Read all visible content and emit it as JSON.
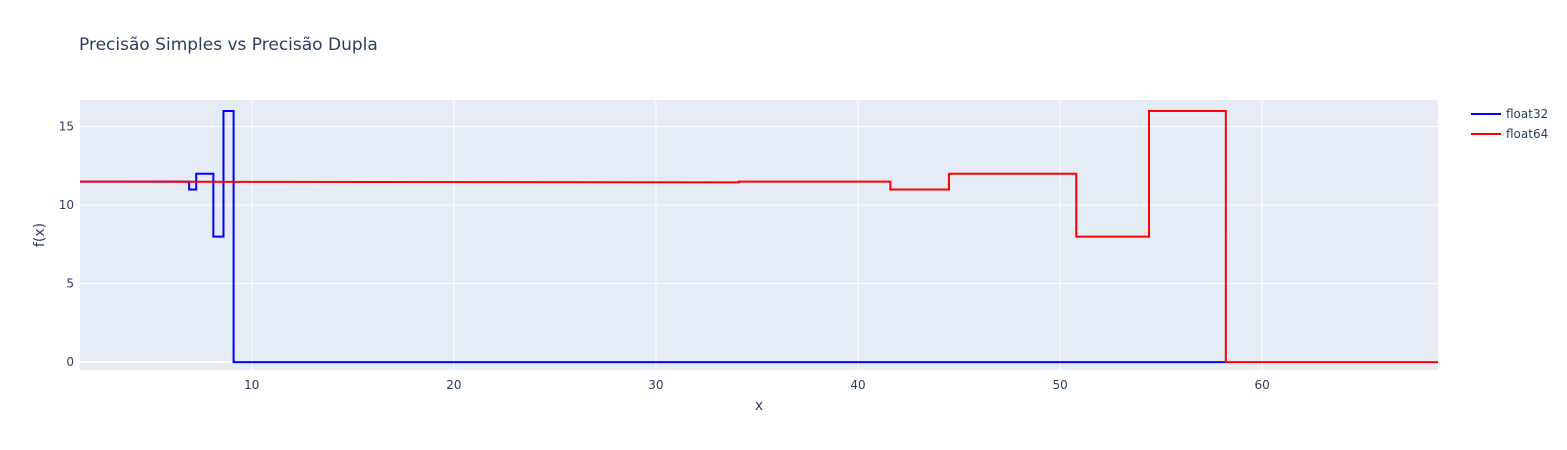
{
  "chart_data": {
    "type": "line",
    "title": "Precisão Simples vs Precisão Dupla",
    "xlabel": "x",
    "ylabel": "f(x)",
    "xlim": [
      1.5,
      68.7
    ],
    "ylim": [
      -0.5,
      16.7
    ],
    "xticks": [
      10,
      20,
      30,
      40,
      50,
      60
    ],
    "yticks": [
      0,
      5,
      10,
      15
    ],
    "grid": true,
    "legend_position": "top-right",
    "plot_background": "#e5ecf6",
    "series": [
      {
        "name": "float32",
        "color": "#0000ff",
        "shape": "step",
        "x": [
          1.5,
          5.95,
          5.95,
          6.9,
          6.9,
          7.25,
          7.25,
          8.1,
          8.1,
          8.6,
          8.6,
          9.1,
          9.1,
          58.2
        ],
        "y": [
          11.5,
          11.5,
          11.5,
          11.5,
          11.0,
          11.0,
          12.0,
          12.0,
          8.0,
          8.0,
          16.0,
          16.0,
          0.0,
          0.0
        ]
      },
      {
        "name": "float64",
        "color": "#ff0000",
        "shape": "step",
        "x": [
          1.5,
          34.1,
          34.1,
          41.6,
          41.6,
          44.5,
          44.5,
          50.8,
          50.8,
          54.4,
          54.4,
          58.2,
          58.2,
          68.7
        ],
        "y": [
          11.5,
          11.45,
          11.5,
          11.5,
          11.0,
          11.0,
          12.0,
          12.0,
          8.0,
          8.0,
          16.0,
          16.0,
          0.0,
          0.0
        ]
      }
    ]
  }
}
